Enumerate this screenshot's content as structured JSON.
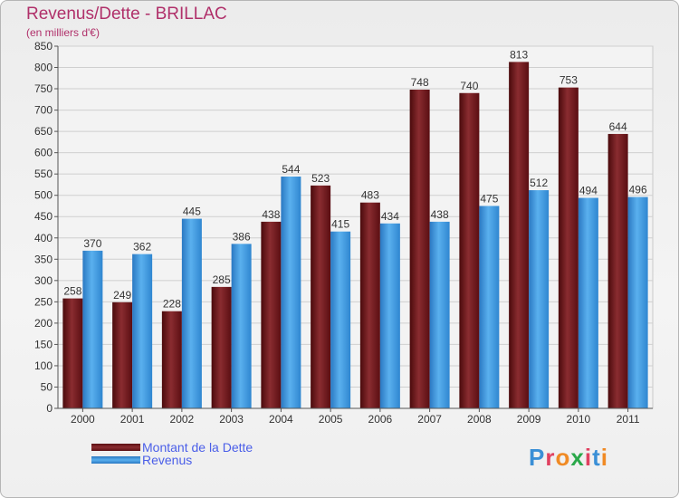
{
  "title": "Revenus/Dette - BRILLAC",
  "subtitle": "(en milliers d'€)",
  "brand": {
    "text": "Proxiti",
    "colors": [
      "#3a8fd6",
      "#e04060",
      "#f08a24",
      "#2aa84a",
      "#e04060",
      "#3a8fd6",
      "#f08a24"
    ]
  },
  "chart_data": {
    "type": "bar",
    "title": "Revenus/Dette - BRILLAC",
    "subtitle": "(en milliers d'€)",
    "categories": [
      "2000",
      "2001",
      "2002",
      "2003",
      "2004",
      "2005",
      "2006",
      "2007",
      "2008",
      "2009",
      "2010",
      "2011"
    ],
    "series": [
      {
        "name": "Montant de la Dette",
        "color": "#7a1a1e",
        "values": [
          258,
          249,
          228,
          285,
          438,
          523,
          483,
          748,
          740,
          813,
          753,
          644
        ]
      },
      {
        "name": "Revenus",
        "color": "#3a9be0",
        "values": [
          370,
          362,
          445,
          386,
          544,
          415,
          434,
          438,
          475,
          512,
          494,
          496
        ]
      }
    ],
    "yticks": [
      0,
      50,
      100,
      150,
      200,
      250,
      300,
      350,
      400,
      450,
      500,
      550,
      600,
      650,
      700,
      750,
      800,
      850
    ],
    "ylim": [
      0,
      850
    ],
    "grid": true,
    "legend": "bottom-left"
  }
}
